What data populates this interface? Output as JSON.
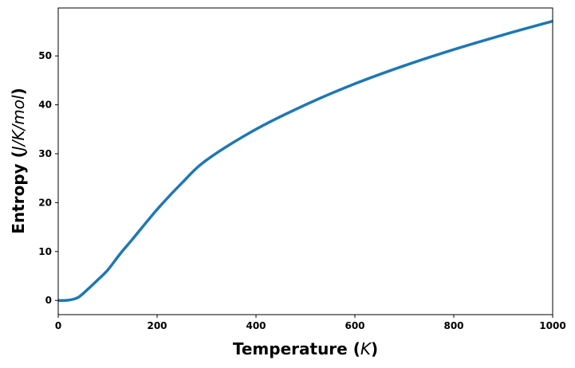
{
  "chart_data": {
    "type": "line",
    "title": "",
    "xlabel": "Temperature (K)",
    "xlabel_text": "Temperature (",
    "xlabel_unit": "K",
    "ylabel": "Entropy (J/K/mol)",
    "ylabel_text": "Entropy (",
    "ylabel_unit": "J/K/mol",
    "close_paren": ")",
    "xlim": [
      0,
      1000
    ],
    "ylim": [
      -2.9,
      59.8
    ],
    "xticks": [
      0,
      200,
      400,
      600,
      800,
      1000
    ],
    "yticks": [
      0,
      10,
      20,
      30,
      40,
      50
    ],
    "grid": false,
    "series": [
      {
        "name": "Entropy",
        "color": "#1f77b4",
        "x": [
          0,
          20,
          40,
          60,
          80,
          100,
          125,
          150,
          200,
          250,
          300,
          400,
          500,
          600,
          700,
          800,
          900,
          1000
        ],
        "y": [
          0,
          0.05,
          0.6,
          2.3,
          4.2,
          6.2,
          9.5,
          12.5,
          18.6,
          24,
          28.7,
          35.0,
          40.0,
          44.3,
          48.0,
          51.3,
          54.3,
          57.1
        ]
      }
    ]
  }
}
